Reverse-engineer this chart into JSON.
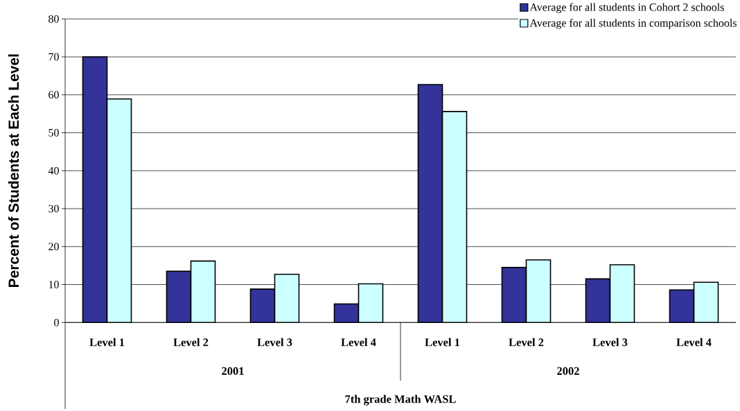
{
  "chart_data": {
    "type": "bar",
    "ylabel": "Percent of Students at Each Level",
    "xlabel": "7th grade Math WASL",
    "categories": [
      "Level 1",
      "Level 2",
      "Level 3",
      "Level 4",
      "Level 1",
      "Level 2",
      "Level 3",
      "Level 4"
    ],
    "annotations": [
      "2001",
      "2002"
    ],
    "series": [
      {
        "name": "Average for all students in Cohort 2 schools",
        "color": "#333399",
        "values": [
          70.0,
          13.5,
          8.8,
          4.9,
          62.7,
          14.5,
          11.5,
          8.6
        ]
      },
      {
        "name": "Average for all students in comparison schools",
        "color": "#ccffff",
        "values": [
          58.9,
          16.2,
          12.7,
          10.2,
          55.6,
          16.5,
          15.2,
          10.6
        ]
      }
    ],
    "ylim": [
      0,
      80
    ],
    "yticks": [
      0,
      10,
      20,
      30,
      40,
      50,
      60,
      70,
      80
    ],
    "grid": "y",
    "legend": "top right"
  }
}
